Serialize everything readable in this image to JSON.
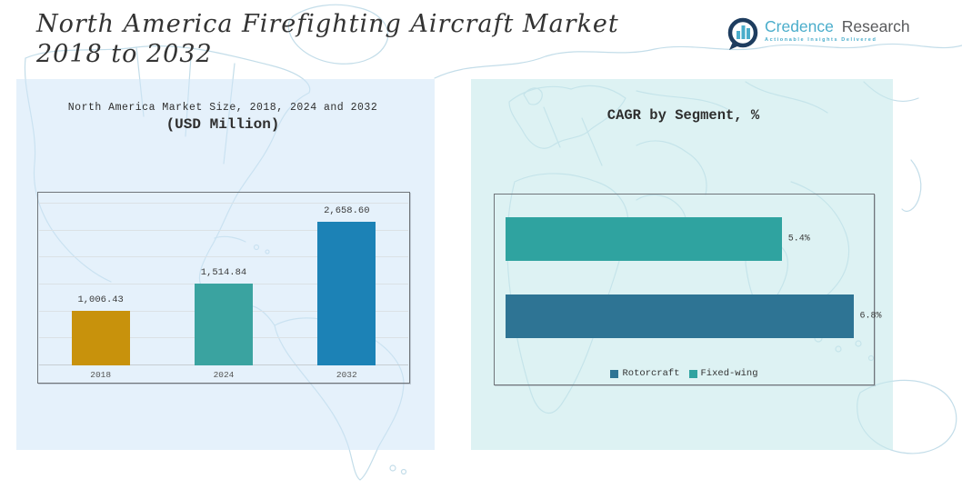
{
  "header": {
    "title_line1": "North America Firefighting Aircraft Market",
    "title_line2": "2018 to 2032"
  },
  "logo": {
    "brand_primary": "Credence",
    "brand_secondary": "Research",
    "tagline": "Actionable Insights Delivered",
    "icon": "bar-chart-speech-bubble-icon",
    "brand_primary_color": "#4AADCB",
    "brand_secondary_color": "#595A5C",
    "icon_color": "#1E3D5F"
  },
  "left_chart": {
    "title_line1": "North America Market Size, 2018, 2024 and 2032",
    "title_line2": "(USD Million)"
  },
  "right_chart": {
    "title": "CAGR by Segment, %"
  },
  "chart_data": [
    {
      "type": "bar",
      "orientation": "vertical",
      "title": "North America Market Size, 2018, 2024 and 2032 (USD Million)",
      "unit": "USD Million",
      "categories": [
        "2018",
        "2024",
        "2032"
      ],
      "values": [
        1006.43,
        1514.84,
        2658.6
      ],
      "value_labels": [
        "1,006.43",
        "1,514.84",
        "2,658.60"
      ],
      "bar_colors": [
        "#C8920C",
        "#3AA3A0",
        "#1C82B6"
      ],
      "ylim": [
        0,
        3000
      ],
      "grid_step": 500,
      "grid": true,
      "legend_position": "none"
    },
    {
      "type": "bar",
      "orientation": "horizontal",
      "title": "CAGR by Segment, %",
      "bars": [
        {
          "name": "Fixed-wing",
          "value": 5.4,
          "label": "5.4%",
          "color": "#2FA3A0"
        },
        {
          "name": "Rotorcraft",
          "value": 6.8,
          "label": "6.8%",
          "color": "#2E7494"
        }
      ],
      "xlim": [
        0,
        7.2
      ],
      "grid": false,
      "legend_position": "bottom",
      "legend": [
        {
          "label": "Rotorcraft",
          "color": "#2E7494"
        },
        {
          "label": "Fixed-wing",
          "color": "#2FA3A0"
        }
      ]
    }
  ]
}
